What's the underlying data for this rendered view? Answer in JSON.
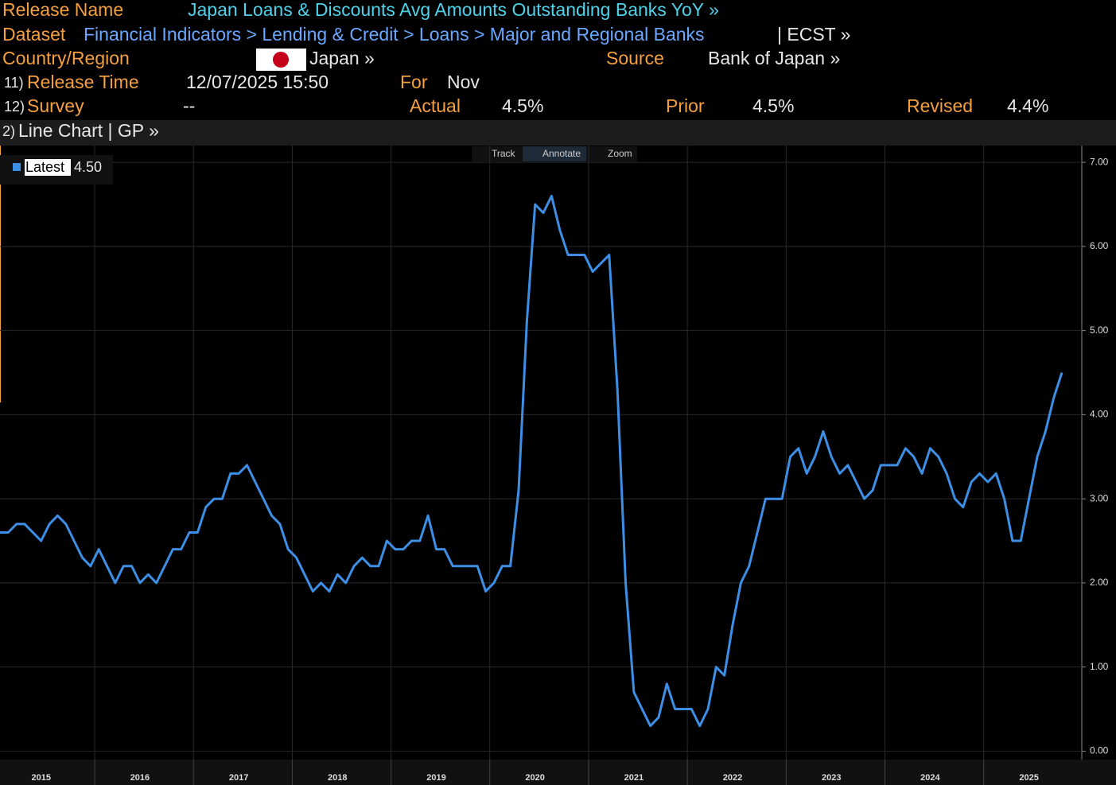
{
  "header": {
    "release_name": {
      "label": "Release Name",
      "value": "Japan Loans & Discounts Avg Amounts Outstanding Banks YoY »"
    },
    "dataset": {
      "label": "Dataset",
      "path": "Financial Indicators > Lending & Credit > Loans > Major and Regional Banks",
      "suffix": "| ECST »"
    },
    "country": {
      "label": "Country/Region",
      "value": "Japan »"
    },
    "source": {
      "label": "Source",
      "value": "Bank of Japan »"
    },
    "release_time": {
      "num": "11)",
      "label": "Release Time",
      "value": "12/07/2025 15:50"
    },
    "for": {
      "label": "For",
      "value": "Nov"
    },
    "survey": {
      "num": "12)",
      "label": "Survey",
      "value": "--"
    },
    "actual": {
      "label": "Actual",
      "value": "4.5%"
    },
    "prior": {
      "label": "Prior",
      "value": "4.5%"
    },
    "revised": {
      "label": "Revised",
      "value": "4.4%"
    },
    "chart_bar": {
      "num": "2)",
      "label": "Line Chart | GP »"
    },
    "toolbar": [
      "Track",
      "Annotate",
      "Zoom"
    ]
  },
  "chart_data": {
    "type": "line",
    "categories": [
      null,
      null,
      null,
      null,
      null,
      "2015",
      null,
      null,
      null,
      null,
      null,
      null,
      null,
      null,
      null,
      null,
      null,
      "2016",
      null,
      null,
      null,
      null,
      null,
      null,
      null,
      null,
      null,
      null,
      null,
      "2017",
      null,
      null,
      null,
      null,
      null,
      null,
      null,
      null,
      null,
      null,
      null,
      "2018",
      null,
      null,
      null,
      null,
      null,
      null,
      null,
      null,
      null,
      null,
      null,
      "2019",
      null,
      null,
      null,
      null,
      null,
      null,
      null,
      null,
      null,
      null,
      null,
      "2020",
      null,
      null,
      null,
      null,
      null,
      null,
      null,
      null,
      null,
      null,
      null,
      "2021",
      null,
      null,
      null,
      null,
      null,
      null,
      null,
      null,
      null,
      null,
      null,
      "2022",
      null,
      null,
      null,
      null,
      null,
      null,
      null,
      null,
      null,
      null,
      null,
      "2023",
      null,
      null,
      null,
      null,
      null,
      null,
      null,
      null,
      null,
      null,
      null,
      "2024",
      null,
      null,
      null,
      null,
      null,
      null,
      null,
      null,
      null,
      null,
      null,
      "2025",
      null,
      null,
      null,
      null
    ],
    "series": [
      {
        "name": "Latest",
        "last_label": "4.50",
        "color": "#3d8fe6",
        "values": [
          2.6,
          2.6,
          2.7,
          2.7,
          2.6,
          2.5,
          2.7,
          2.8,
          2.7,
          2.5,
          2.3,
          2.2,
          2.4,
          2.2,
          2.0,
          2.2,
          2.2,
          2.0,
          2.1,
          2.0,
          2.2,
          2.4,
          2.4,
          2.6,
          2.6,
          2.9,
          3.0,
          3.0,
          3.3,
          3.3,
          3.4,
          3.2,
          3.0,
          2.8,
          2.7,
          2.4,
          2.3,
          2.1,
          1.9,
          2.0,
          1.9,
          2.1,
          2.0,
          2.2,
          2.3,
          2.2,
          2.2,
          2.5,
          2.4,
          2.4,
          2.5,
          2.5,
          2.8,
          2.4,
          2.4,
          2.2,
          2.2,
          2.2,
          2.2,
          1.9,
          2.0,
          2.2,
          2.2,
          3.1,
          5.1,
          6.5,
          6.4,
          6.6,
          6.2,
          5.9,
          5.9,
          5.9,
          5.7,
          5.8,
          5.9,
          4.3,
          2.0,
          0.7,
          0.5,
          0.3,
          0.4,
          0.8,
          0.5,
          0.5,
          0.5,
          0.3,
          0.5,
          1.0,
          0.9,
          1.5,
          2.0,
          2.2,
          2.6,
          3.0,
          3.0,
          3.0,
          3.5,
          3.6,
          3.3,
          3.5,
          3.8,
          3.5,
          3.3,
          3.4,
          3.2,
          3.0,
          3.1,
          3.4,
          3.4,
          3.4,
          3.6,
          3.5,
          3.3,
          3.6,
          3.5,
          3.3,
          3.0,
          2.9,
          3.2,
          3.3,
          3.2,
          3.3,
          3.0,
          2.5,
          2.5,
          3.0,
          3.5,
          3.8,
          4.2,
          4.5
        ]
      }
    ],
    "ylim": [
      -0.1,
      7.2
    ],
    "yticks": [
      {
        "value": 0,
        "label": "0.00"
      },
      {
        "value": 1,
        "label": "1.00"
      },
      {
        "value": 2,
        "label": "2.00"
      },
      {
        "value": 3,
        "label": "3.00"
      },
      {
        "value": 4,
        "label": "4.00"
      },
      {
        "value": 5,
        "label": "5.00"
      },
      {
        "value": 6,
        "label": "6.00"
      },
      {
        "value": 7,
        "label": "7.00"
      }
    ],
    "grid": true
  }
}
